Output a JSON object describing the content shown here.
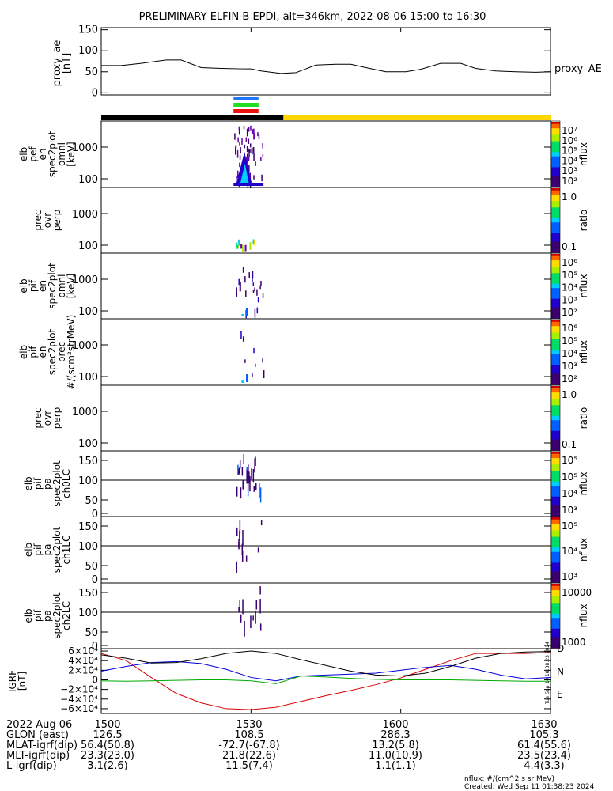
{
  "chart_data": {
    "type": "heatmap",
    "title": "PRELIMINARY ELFIN-B EPDI, alt=346km, 2022-08-06 15:00 to 16:30",
    "time_range_min": [
      0,
      90
    ],
    "x_ticks": [
      "1500",
      "1530",
      "1600",
      "1630"
    ],
    "x_tick_minutes": [
      0,
      30,
      60,
      90
    ],
    "proxy_ae": {
      "ylabel": "proxy_ae\n[nT]",
      "legend": "proxy_AE",
      "yticks": [
        "150",
        "100",
        "50",
        "0"
      ],
      "ytick_values": [
        150,
        100,
        50,
        0
      ],
      "ylim": [
        -5,
        155
      ],
      "t": [
        0,
        4,
        8,
        13,
        16,
        20,
        24,
        28,
        30,
        32,
        36,
        39,
        43,
        47,
        50,
        53,
        57,
        61,
        64,
        68,
        72,
        75,
        79,
        83,
        87,
        90
      ],
      "values": [
        65,
        65,
        70,
        78,
        78,
        60,
        58,
        57,
        57,
        52,
        46,
        48,
        66,
        68,
        68,
        60,
        50,
        50,
        56,
        70,
        70,
        58,
        52,
        50,
        49,
        50
      ]
    },
    "science_zone_bars": [
      {
        "color": "#1f77ff",
        "t0": 26.5,
        "t1": 31.5
      },
      {
        "color": "#22dd22",
        "t0": 26.5,
        "t1": 31.5
      },
      {
        "color": "#ee1111",
        "t0": 26.5,
        "t1": 31.5
      }
    ],
    "status_bar": [
      {
        "color": "#000000",
        "t0": 0,
        "t1": 36.5
      },
      {
        "color": "#ffd700",
        "t0": 36.5,
        "t1": 90
      }
    ],
    "panels": [
      {
        "label": [
          "elb",
          "pef",
          "en",
          "spec2plot",
          "omni",
          "[keV]"
        ],
        "yticks": [
          "1000",
          "100"
        ],
        "cbar_labels": [
          "10⁷",
          "10⁶",
          "10⁵",
          "10⁴",
          "10³",
          "10²"
        ],
        "cbar_title": "nflux"
      },
      {
        "label": [
          "prec",
          "ovr",
          "perp"
        ],
        "yticks": [
          "1000",
          "100"
        ],
        "cbar_labels": [
          "1.0",
          "0.1"
        ],
        "cbar_title": "ratio"
      },
      {
        "label": [
          "elb",
          "pif",
          "en",
          "spec2plot",
          "omni",
          "[keV]"
        ],
        "yticks": [
          "1000",
          "100"
        ],
        "cbar_labels": [
          "10⁶",
          "10⁵",
          "10⁴",
          "10³",
          "10²"
        ],
        "cbar_title": "nflux"
      },
      {
        "label": [
          "elb",
          "pif",
          "en",
          "spec2plot",
          "prec",
          "#/(scm²strMeV)"
        ],
        "yticks": [
          "1000",
          "100"
        ],
        "cbar_labels": [
          "10⁶",
          "10⁵",
          "10⁴",
          "10³",
          "10²"
        ],
        "cbar_title": "nflux"
      },
      {
        "label": [
          "prec",
          "ovr",
          "perp"
        ],
        "yticks": [
          "1000",
          "100"
        ],
        "cbar_labels": [
          "1.0",
          "0.1"
        ],
        "cbar_title": "ratio"
      },
      {
        "label": [
          "elb",
          "pif",
          "pa",
          "spec2plot",
          "ch0LC"
        ],
        "yticks": [
          "150",
          "100",
          "50",
          "0"
        ],
        "cbar_labels": [
          "10⁵",
          "10⁵",
          "10⁴",
          "10³"
        ],
        "cbar_title": "nflux"
      },
      {
        "label": [
          "elb",
          "pif",
          "pa",
          "spec2plot",
          "ch1LC"
        ],
        "yticks": [
          "150",
          "100",
          "50",
          "0"
        ],
        "cbar_labels": [
          "10⁵",
          "10⁴",
          "10³"
        ],
        "cbar_title": "nflux"
      },
      {
        "label": [
          "elb",
          "pif",
          "pa",
          "spec2plot",
          "ch2LC"
        ],
        "yticks": [
          "150",
          "100",
          "50",
          "0"
        ],
        "cbar_labels": [
          "10000",
          "1000"
        ],
        "cbar_title": "nflux"
      }
    ],
    "igrf": {
      "ylabel": "IGRF\n[nT]",
      "yticks": [
        "6×10⁴",
        "4×10⁴",
        "2×10⁴",
        "0",
        "−2×10⁴",
        "−4×10⁴",
        "−6×10⁴"
      ],
      "ytick_values": [
        60000,
        40000,
        20000,
        0,
        -20000,
        -40000,
        -60000
      ],
      "ylim": [
        -70000,
        65000
      ],
      "legend": [
        "D",
        "N",
        "E"
      ],
      "legend_colors": [
        "#dd0000",
        "#0000dd",
        "#00aa00"
      ],
      "t": [
        0,
        5,
        10,
        15,
        20,
        25,
        30,
        35,
        40,
        45,
        50,
        55,
        60,
        65,
        70,
        75,
        80,
        85,
        90
      ],
      "series": [
        {
          "name": "D",
          "color": "#dd0000",
          "values": [
            55000,
            40000,
            5000,
            -28000,
            -48000,
            -60000,
            -62000,
            -57000,
            -45000,
            -33000,
            -22000,
            -10000,
            4000,
            22000,
            40000,
            55000,
            55000,
            55000,
            57000
          ]
        },
        {
          "name": "N",
          "color": "#0000dd",
          "values": [
            18000,
            28000,
            36000,
            38000,
            34000,
            22000,
            5000,
            -2000,
            8000,
            10000,
            12000,
            14000,
            20000,
            26000,
            30000,
            22000,
            10000,
            2000,
            5000
          ]
        },
        {
          "name": "E",
          "color": "#00aa00",
          "values": [
            -2000,
            -3000,
            -2000,
            -1000,
            0,
            0,
            -2000,
            -8000,
            8000,
            6000,
            3000,
            1000,
            0,
            0,
            0,
            -1000,
            -2000,
            -3000,
            -3000
          ]
        },
        {
          "name": "T",
          "color": "#000000",
          "values": [
            52000,
            45000,
            35000,
            36000,
            44000,
            55000,
            60000,
            55000,
            42000,
            30000,
            18000,
            10000,
            8000,
            14000,
            28000,
            45000,
            55000,
            58000,
            59000
          ]
        }
      ]
    },
    "ephemeris": {
      "rows": [
        {
          "label": "2022 Aug 06",
          "values": [
            "1500",
            "1530",
            "1600",
            "1630"
          ]
        },
        {
          "label": "GLON (east)",
          "values": [
            "126.5",
            "108.5",
            "286.3",
            "105.3"
          ]
        },
        {
          "label": "MLAT-igrf(dip)",
          "values": [
            "56.4(50.8)",
            "-72.7(-67.8)",
            "13.2(5.8)",
            "61.4(55.6)"
          ]
        },
        {
          "label": "MLT-igrf(dip)",
          "values": [
            "23.3(23.0)",
            "21.8(22.6)",
            "11.0(10.9)",
            "23.5(23.4)"
          ]
        },
        {
          "label": "L-igrf(dip)",
          "values": [
            "3.1(2.6)",
            "11.5(7.4)",
            "1.1(1.1)",
            "4.4(3.3)"
          ]
        }
      ]
    },
    "footer": [
      "nflux: #/(cm^2 s sr MeV)",
      "Created: Wed Sep 11 01:38:23 2024"
    ],
    "side_stamp": "Tue Sep 10 18:38:23 2024"
  }
}
